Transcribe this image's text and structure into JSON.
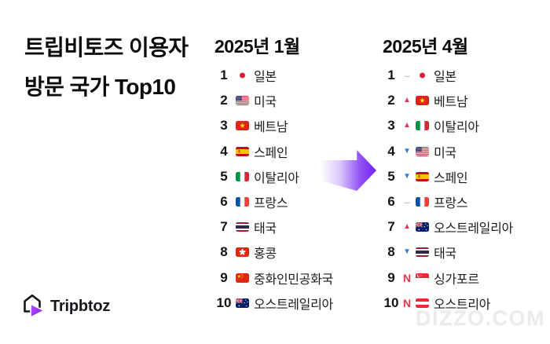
{
  "title": {
    "line1": "트립비토즈 이용자",
    "line2": "방문 국가 Top10"
  },
  "chart_data": {
    "type": "table",
    "title": "트립비토즈 이용자 방문 국가 Top10",
    "columns": [
      {
        "header": "2025년 1월",
        "has_change_indicators": false,
        "rows": [
          {
            "rank": "1",
            "flag": "jp",
            "country": "일본"
          },
          {
            "rank": "2",
            "flag": "us",
            "country": "미국"
          },
          {
            "rank": "3",
            "flag": "vn",
            "country": "베트남"
          },
          {
            "rank": "4",
            "flag": "es",
            "country": "스페인"
          },
          {
            "rank": "5",
            "flag": "it",
            "country": "이탈리아"
          },
          {
            "rank": "6",
            "flag": "fr",
            "country": "프랑스"
          },
          {
            "rank": "7",
            "flag": "th",
            "country": "태국"
          },
          {
            "rank": "8",
            "flag": "hk",
            "country": "홍콩"
          },
          {
            "rank": "9",
            "flag": "cn",
            "country": "중화인민공화국"
          },
          {
            "rank": "10",
            "flag": "au",
            "country": "오스트레일리아"
          }
        ]
      },
      {
        "header": "2025년 4월",
        "has_change_indicators": true,
        "rows": [
          {
            "rank": "1",
            "change": "same",
            "flag": "jp",
            "country": "일본"
          },
          {
            "rank": "2",
            "change": "up",
            "flag": "vn",
            "country": "베트남"
          },
          {
            "rank": "3",
            "change": "up",
            "flag": "it",
            "country": "이탈리아"
          },
          {
            "rank": "4",
            "change": "down",
            "flag": "us",
            "country": "미국"
          },
          {
            "rank": "5",
            "change": "down",
            "flag": "es",
            "country": "스페인"
          },
          {
            "rank": "6",
            "change": "same",
            "flag": "fr",
            "country": "프랑스"
          },
          {
            "rank": "7",
            "change": "up",
            "flag": "au",
            "country": "오스트레일리아"
          },
          {
            "rank": "8",
            "change": "down",
            "flag": "th",
            "country": "태국"
          },
          {
            "rank": "9",
            "change": "new",
            "flag": "sg",
            "country": "싱가포르"
          },
          {
            "rank": "10",
            "change": "new",
            "flag": "at",
            "country": "오스트리아"
          }
        ]
      }
    ]
  },
  "indicators": {
    "up": {
      "symbol": "▲",
      "color": "#e8344e"
    },
    "down": {
      "symbol": "▼",
      "color": "#2e7ef0"
    },
    "same": {
      "symbol": "–",
      "color": "#c9c9c9"
    },
    "new": {
      "symbol": "N",
      "color": "#e8344e"
    }
  },
  "arrow": {
    "direction": "right",
    "gradient_start": "#ffffff",
    "gradient_mid": "#9355f5",
    "gradient_end": "#7420f2"
  },
  "logo": {
    "text": "Tripbtoz",
    "icon_color_dark": "#17181d",
    "icon_gradient_start": "#b84ef6",
    "icon_gradient_end": "#7a22f3"
  },
  "watermark": "DIZZO.COM"
}
